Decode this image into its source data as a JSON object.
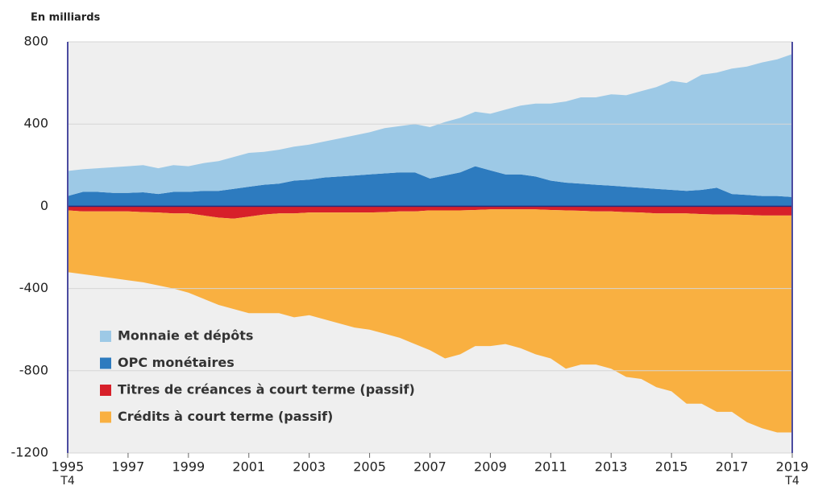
{
  "chart_data": {
    "type": "stacked_area",
    "title": "En milliards",
    "x": [
      1995,
      1995.5,
      1996,
      1996.5,
      1997,
      1997.5,
      1998,
      1998.5,
      1999,
      1999.5,
      2000,
      2000.5,
      2001,
      2001.5,
      2002,
      2002.5,
      2003,
      2003.5,
      2004,
      2004.5,
      2005,
      2005.5,
      2006,
      2006.5,
      2007,
      2007.5,
      2008,
      2008.5,
      2009,
      2009.5,
      2010,
      2010.5,
      2011,
      2011.5,
      2012,
      2012.5,
      2013,
      2013.5,
      2014,
      2014.5,
      2015,
      2015.5,
      2016,
      2016.5,
      2017,
      2017.5,
      2018,
      2018.5,
      2019
    ],
    "series": [
      {
        "name": "Monnaie et dépôts",
        "color": "#9dc9e6",
        "values": [
          122,
          110,
          115,
          125,
          130,
          132,
          125,
          130,
          125,
          135,
          145,
          155,
          165,
          160,
          165,
          165,
          170,
          175,
          185,
          195,
          205,
          220,
          225,
          235,
          250,
          260,
          265,
          265,
          275,
          315,
          335,
          355,
          375,
          395,
          420,
          425,
          445,
          445,
          470,
          495,
          530,
          525,
          560,
          560,
          610,
          625,
          650,
          665,
          695
        ]
      },
      {
        "name": "OPC monétaires",
        "color": "#2d7bbf",
        "values": [
          50,
          70,
          70,
          65,
          65,
          68,
          60,
          70,
          70,
          75,
          75,
          85,
          95,
          105,
          110,
          125,
          130,
          140,
          145,
          150,
          155,
          160,
          165,
          165,
          135,
          150,
          165,
          195,
          175,
          155,
          155,
          145,
          125,
          115,
          110,
          105,
          100,
          95,
          90,
          85,
          80,
          75,
          80,
          90,
          60,
          55,
          50,
          50,
          45
        ]
      },
      {
        "name": "Titres de créances à court terme (passif)",
        "color": "#d7202a",
        "values": [
          -20,
          -25,
          -25,
          -25,
          -25,
          -28,
          -30,
          -35,
          -35,
          -45,
          -55,
          -60,
          -50,
          -40,
          -35,
          -35,
          -30,
          -30,
          -30,
          -30,
          -30,
          -28,
          -25,
          -25,
          -20,
          -20,
          -20,
          -18,
          -15,
          -15,
          -15,
          -15,
          -18,
          -20,
          -22,
          -25,
          -25,
          -28,
          -30,
          -35,
          -35,
          -35,
          -38,
          -40,
          -40,
          -42,
          -45,
          -45,
          -45
        ]
      },
      {
        "name": "Crédits à court terme (passif)",
        "color": "#f9b041",
        "values": [
          -300,
          -305,
          -315,
          -325,
          -335,
          -342,
          -355,
          -365,
          -385,
          -405,
          -425,
          -440,
          -470,
          -480,
          -485,
          -505,
          -500,
          -520,
          -540,
          -560,
          -570,
          -592,
          -615,
          -645,
          -680,
          -720,
          -700,
          -662,
          -665,
          -655,
          -675,
          -705,
          -722,
          -770,
          -748,
          -745,
          -765,
          -802,
          -810,
          -845,
          -865,
          -925,
          -922,
          -960,
          -960,
          -1008,
          -1035,
          -1055,
          -1055
        ]
      }
    ],
    "xlim": [
      1995,
      2019
    ],
    "xticks": [
      1995,
      1997,
      1999,
      2001,
      2003,
      2005,
      2007,
      2009,
      2011,
      2013,
      2015,
      2017,
      2019
    ],
    "annotations": [
      {
        "text": "T4",
        "x": 1995
      },
      {
        "text": "T4",
        "x": 2019
      }
    ],
    "ylim": [
      -1200,
      800
    ],
    "yticks": [
      -1200,
      -800,
      -400,
      0,
      400,
      800
    ],
    "grid": true,
    "legend": "lower left"
  }
}
